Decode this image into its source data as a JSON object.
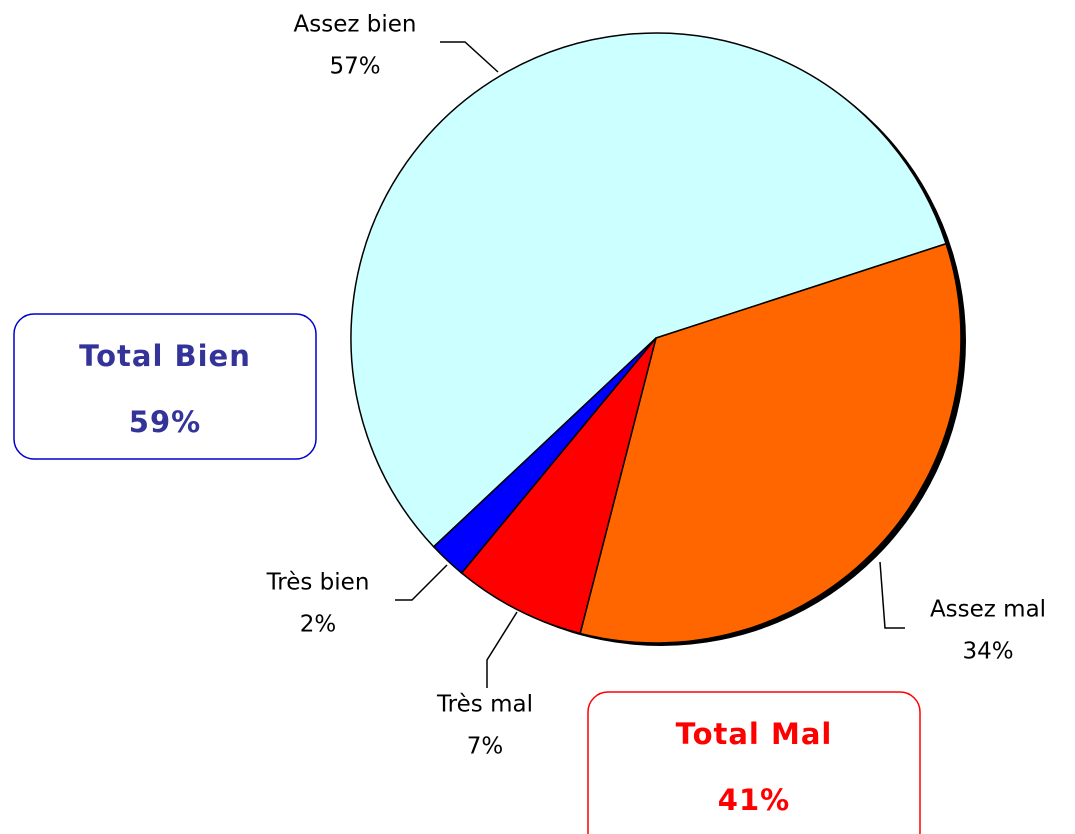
{
  "chart_data": {
    "type": "pie",
    "categories": [
      "Assez bien",
      "Assez mal",
      "Très mal",
      "Très bien"
    ],
    "values": [
      57,
      34,
      7,
      2
    ],
    "value_labels": [
      "57%",
      "34%",
      "7%",
      "2%"
    ],
    "colors": [
      "#ccffff",
      "#ff6600",
      "#ff0000",
      "#0000ff"
    ],
    "annotations": [
      {
        "title": "Total Bien",
        "value": "59%",
        "color": "#333399",
        "border": "#0000cc"
      },
      {
        "title": "Total Mal",
        "value": "41%",
        "color": "#ff0000",
        "border": "#ff0000"
      }
    ]
  }
}
